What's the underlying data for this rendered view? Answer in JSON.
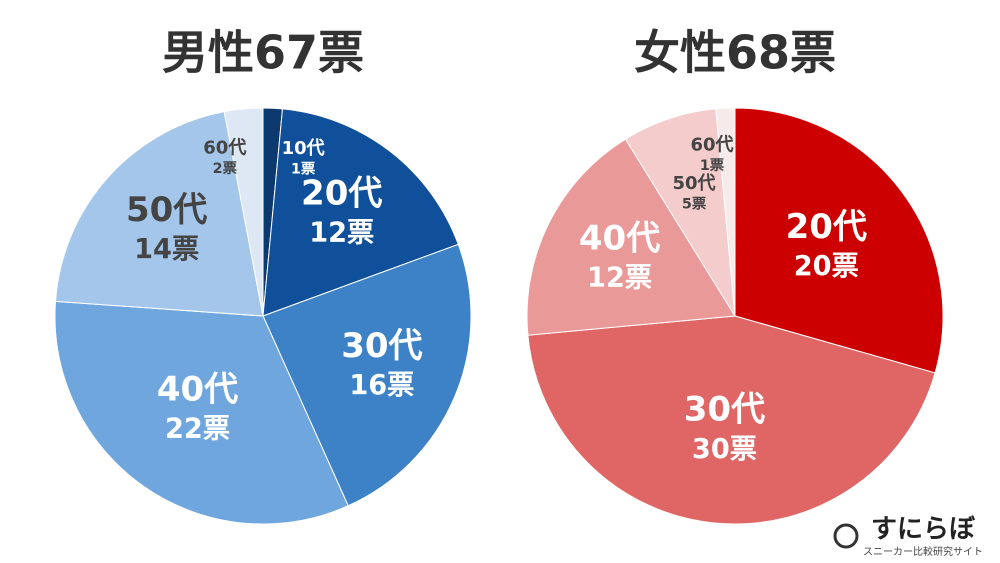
{
  "chart_data": [
    {
      "type": "pie",
      "title": "男性67票",
      "categories": [
        "10代",
        "20代",
        "30代",
        "40代",
        "50代",
        "60代"
      ],
      "values": [
        1,
        12,
        16,
        22,
        14,
        2
      ],
      "value_labels": [
        "1票",
        "12票",
        "16票",
        "22票",
        "14票",
        "2票"
      ],
      "colors": [
        "#0d3a6e",
        "#10509a",
        "#3d82c6",
        "#6fa6de",
        "#a3c6ea",
        "#dde8f4"
      ],
      "label_colors": [
        "#ffffff",
        "#ffffff",
        "#ffffff",
        "#ffffff",
        "#444444",
        "#444444"
      ]
    },
    {
      "type": "pie",
      "title": "女性68票",
      "categories": [
        "20代",
        "30代",
        "40代",
        "50代",
        "60代"
      ],
      "values": [
        20,
        30,
        12,
        5,
        1
      ],
      "value_labels": [
        "20票",
        "30票",
        "12票",
        "5票",
        "1票"
      ],
      "colors": [
        "#cc0000",
        "#e06666",
        "#ea9999",
        "#f4cccc",
        "#f6eaea"
      ],
      "label_colors": [
        "#ffffff",
        "#ffffff",
        "#ffffff",
        "#444444",
        "#444444"
      ]
    }
  ],
  "logo": {
    "name": "すにらぼ",
    "tagline": "スニーカー比較研究サイト"
  }
}
